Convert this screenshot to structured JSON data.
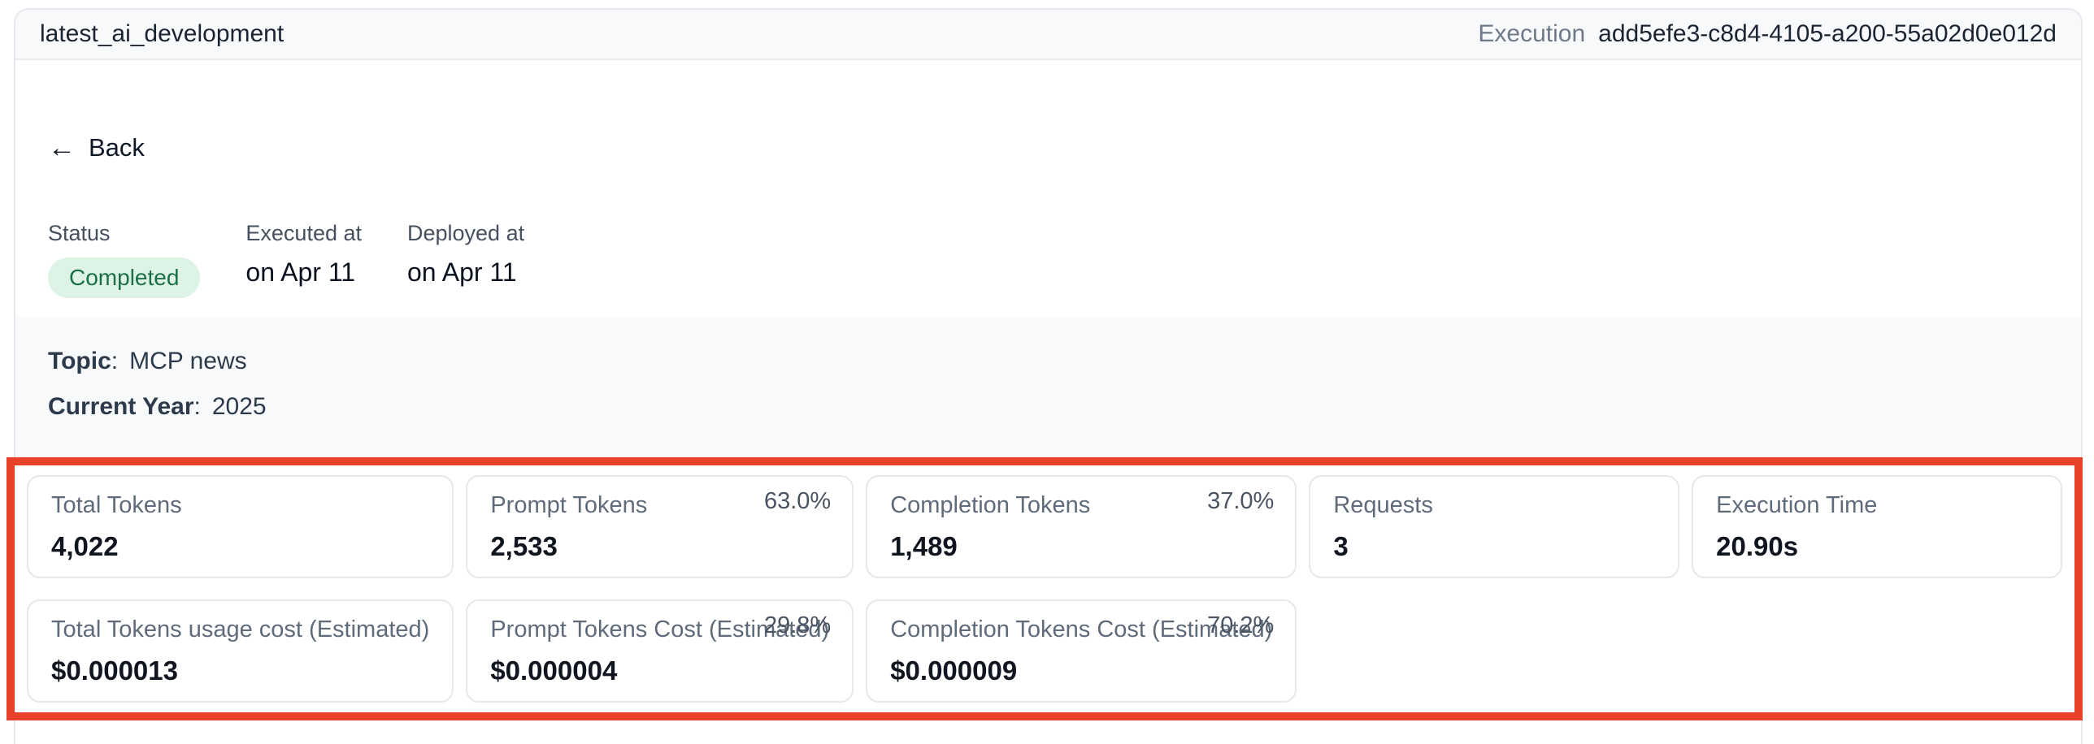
{
  "colors": {
    "annotation_red": "#e8422b",
    "badge_bg": "#dcf3e6",
    "badge_text": "#1d6f47",
    "section_bg": "#f8f9fa"
  },
  "header": {
    "title": "latest_ai_development",
    "execution_label": "Execution",
    "execution_id": "add5efe3-c8d4-4105-a200-55a02d0e012d"
  },
  "back": {
    "arrow": "←",
    "label": "Back"
  },
  "status": {
    "status_label": "Status",
    "status_value": "Completed",
    "executed_label": "Executed at",
    "executed_value": "on Apr 11",
    "deployed_label": "Deployed at",
    "deployed_value": "on Apr 11"
  },
  "inputs": [
    {
      "label": "Topic",
      "separator": ":",
      "value": "MCP news"
    },
    {
      "label": "Current Year",
      "separator": ":",
      "value": "2025"
    }
  ],
  "metrics": {
    "cards": [
      {
        "label": "Total Tokens",
        "value": "4,022",
        "percentage": ""
      },
      {
        "label": "Prompt Tokens",
        "value": "2,533",
        "percentage": "63.0%"
      },
      {
        "label": "Completion Tokens",
        "value": "1,489",
        "percentage": "37.0%"
      },
      {
        "label": "Requests",
        "value": "3",
        "percentage": ""
      },
      {
        "label": "Execution Time",
        "value": "20.90s",
        "percentage": ""
      },
      {
        "label": "Total Tokens usage cost (Estimated)",
        "value": "$0.000013",
        "percentage": ""
      },
      {
        "label": "Prompt Tokens Cost (Estimated)",
        "value": "$0.000004",
        "percentage": "29.8%"
      },
      {
        "label": "Completion Tokens Cost (Estimated)",
        "value": "$0.000009",
        "percentage": "70.2%"
      }
    ]
  }
}
